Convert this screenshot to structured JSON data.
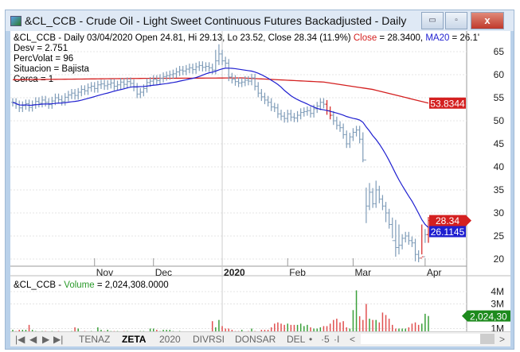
{
  "window": {
    "title": "&CL_CCB - Crude Oil - Light Sweet Continuous Futures Backadjusted - Daily",
    "minimize": "▭",
    "maximize": "▫",
    "close": "x"
  },
  "header": {
    "line1_prefix": "&CL_CCB - Daily 03/04/2020 Open 24.81, Hi 29.13, Lo 23.52, Close 28.34 (11.9%) ",
    "close_label": "Close",
    "close_value": " = 28.3400, ",
    "ma_label": "MA20",
    "ma_value": " = 26.1'",
    "desv": "Desv =    2.751",
    "percvolat": "PercVolat = 96",
    "situacion": "Situacion = Bajista",
    "cerca": "Cerca = 1"
  },
  "volume_header": {
    "prefix": "&CL_CCB - ",
    "label": "Volume",
    "value": " = 2,024,308.0000"
  },
  "colors": {
    "bars": "#7f9cb8",
    "ma20": "#1f1fd0",
    "ma200": "#d42020",
    "vol_up": "#3aa03a",
    "vol_down": "#e05050",
    "badge_green": "#1d8a1d"
  },
  "tabs": {
    "first": "|◀",
    "prev": "◀",
    "next": "▶",
    "last": "▶|",
    "items": [
      "TENAZ",
      "ZETA",
      "2020",
      "DIVRSI",
      "DONSAR",
      "DEL"
    ],
    "active": "ZETA",
    "extra": [
      "•",
      "·5",
      "·I"
    ],
    "scroll_left": "<",
    "scroll_right": ">"
  },
  "chart_data": [
    {
      "type": "ohlc",
      "title": "&CL_CCB - Crude Oil - Light Sweet Continuous Futures Backadjusted - Daily",
      "x_ticks": [
        {
          "label": "Nov",
          "bar": 25
        },
        {
          "label": "Dec",
          "bar": 43
        },
        {
          "label": "2020",
          "bar": 64,
          "bold": true
        },
        {
          "label": "Feb",
          "bar": 84
        },
        {
          "label": "Mar",
          "bar": 104
        },
        {
          "label": "Apr",
          "bar": 126
        }
      ],
      "y_ticks": [
        20,
        25,
        30,
        35,
        40,
        45,
        50,
        55,
        60,
        65
      ],
      "ylim": [
        18.5,
        70
      ],
      "close": [
        54.0,
        53.5,
        52.8,
        53.3,
        53.7,
        52.9,
        53.5,
        54.2,
        53.8,
        54.5,
        54.0,
        53.5,
        54.3,
        55.0,
        54.6,
        54.2,
        55.1,
        55.6,
        56.0,
        55.5,
        56.2,
        56.8,
        56.5,
        57.2,
        57.5,
        57.0,
        57.8,
        58.0,
        57.6,
        57.9,
        58.2,
        57.5,
        57.8,
        58.4,
        57.9,
        58.5,
        58.1,
        57.3,
        55.8,
        56.2,
        57.0,
        58.3,
        58.6,
        59.0,
        58.7,
        59.2,
        59.6,
        59.8,
        60.0,
        60.2,
        60.6,
        61.0,
        60.8,
        61.2,
        61.5,
        61.1,
        61.7,
        62.0,
        61.6,
        61.8,
        61.5,
        61.0,
        63.0,
        64.5,
        63.0,
        62.5,
        59.5,
        59.0,
        58.5,
        58.2,
        58.4,
        58.8,
        58.6,
        59.3,
        57.5,
        56.0,
        55.2,
        54.5,
        54.0,
        53.0,
        52.8,
        51.5,
        51.0,
        50.5,
        51.5,
        50.8,
        50.6,
        51.2,
        51.8,
        52.0,
        52.2,
        51.6,
        52.6,
        53.2,
        54.0,
        53.6,
        52.2,
        51.2,
        50.0,
        49.0,
        48.5,
        47.0,
        45.0,
        46.5,
        47.5,
        48.0,
        46.0,
        41.5,
        31.5,
        34.5,
        32.0,
        35.0,
        33.0,
        31.5,
        30.0,
        27.5,
        24.0,
        22.5,
        23.0,
        24.5,
        25.0,
        24.0,
        23.5,
        21.0,
        20.2,
        20.5,
        25.3,
        28.34
      ],
      "high_extra": {
        "62": 65.4,
        "63": 66.6,
        "107": 47.5,
        "108": 35.5,
        "109": 36.5,
        "111": 37.0,
        "116": 29.0,
        "117": 28.5,
        "118": 27.5,
        "125": 27.5,
        "126": 26.5,
        "127": 29.13
      },
      "low_extra": {
        "107": 41.0,
        "108": 27.8,
        "114": 28.0,
        "116": 24.5,
        "117": 20.5,
        "118": 21.0,
        "123": 19.5,
        "125": 21.0,
        "126": 23.5,
        "127": 23.52
      },
      "red_bars": [
        96,
        97,
        125,
        127
      ],
      "ma200_points": [
        [
          0,
          58.9
        ],
        [
          40,
          59.2
        ],
        [
          70,
          59.3
        ],
        [
          95,
          58.4
        ],
        [
          110,
          56.8
        ],
        [
          127,
          53.8344
        ]
      ],
      "labels": {
        "ma200": "53.8344",
        "close": "28.34",
        "ma20": "26.1145"
      }
    },
    {
      "type": "bar",
      "name": "Volume",
      "y_ticks": [
        {
          "v": 1,
          "label": "1M"
        },
        {
          "v": 3,
          "label": "3M"
        },
        {
          "v": 4,
          "label": "4M"
        }
      ],
      "unit": "M",
      "values": [
        0.9,
        0.8,
        0.9,
        0.9,
        0.9,
        1.3,
        0.9,
        0.8,
        0.7,
        0.8,
        0.8,
        0.7,
        0.8,
        0.7,
        0.8,
        0.6,
        0.6,
        0.7,
        0.8,
        1.1,
        1.0,
        0.7,
        0.8,
        0.7,
        0.8,
        0.7,
        1.1,
        0.9,
        0.8,
        0.9,
        0.8,
        0.8,
        0.8,
        0.7,
        0.8,
        0.8,
        0.5,
        0.5,
        0.5,
        0.8,
        0.8,
        0.7,
        1.0,
        1.0,
        0.9,
        0.8,
        0.9,
        0.9,
        0.9,
        0.8,
        0.7,
        0.8,
        0.3,
        0.2,
        0.2,
        0.3,
        0.4,
        0.4,
        0.5,
        0.5,
        0.5,
        1.6,
        1.1,
        1.7,
        1.2,
        1.0,
        1.0,
        0.9,
        0.8,
        0.8,
        0.9,
        0.6,
        0.8,
        1.0,
        0.8,
        0.6,
        0.9,
        0.9,
        0.9,
        1.1,
        1.4,
        1.5,
        1.4,
        1.3,
        1.4,
        1.3,
        1.3,
        1.3,
        1.4,
        1.2,
        1.3,
        1.1,
        1.0,
        1.0,
        1.1,
        1.2,
        1.2,
        1.4,
        1.7,
        1.8,
        1.5,
        1.6,
        1.1,
        1.0,
        2.5,
        4.1,
        2.0,
        1.7,
        3.0,
        1.8,
        1.7,
        1.7,
        1.5,
        2.3,
        2.1,
        1.8,
        1.3,
        1.0,
        1.0,
        1.0,
        1.0,
        1.1,
        1.4,
        1.5,
        1.3,
        1.4,
        2.2,
        2.02
      ],
      "label": "2,024,30"
    }
  ]
}
